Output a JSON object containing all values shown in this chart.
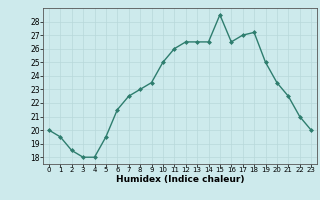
{
  "x": [
    0,
    1,
    2,
    3,
    4,
    5,
    6,
    7,
    8,
    9,
    10,
    11,
    12,
    13,
    14,
    15,
    16,
    17,
    18,
    19,
    20,
    21,
    22,
    23
  ],
  "y": [
    20.0,
    19.5,
    18.5,
    18.0,
    18.0,
    19.5,
    21.5,
    22.5,
    23.0,
    23.5,
    25.0,
    26.0,
    26.5,
    26.5,
    26.5,
    28.5,
    26.5,
    27.0,
    27.2,
    25.0,
    23.5,
    22.5,
    21.0,
    20.0
  ],
  "xlabel": "Humidex (Indice chaleur)",
  "ylim": [
    17.5,
    29.0
  ],
  "xlim": [
    -0.5,
    23.5
  ],
  "yticks": [
    18,
    19,
    20,
    21,
    22,
    23,
    24,
    25,
    26,
    27,
    28
  ],
  "xtick_labels": [
    "0",
    "1",
    "2",
    "3",
    "4",
    "5",
    "6",
    "7",
    "8",
    "9",
    "10",
    "11",
    "12",
    "13",
    "14",
    "15",
    "16",
    "17",
    "18",
    "19",
    "20",
    "21",
    "22",
    "23"
  ],
  "line_color": "#2e7d6e",
  "marker_color": "#2e7d6e",
  "bg_color": "#cdeaec",
  "grid_color": "#b8d8da",
  "axis_color": "#555555"
}
